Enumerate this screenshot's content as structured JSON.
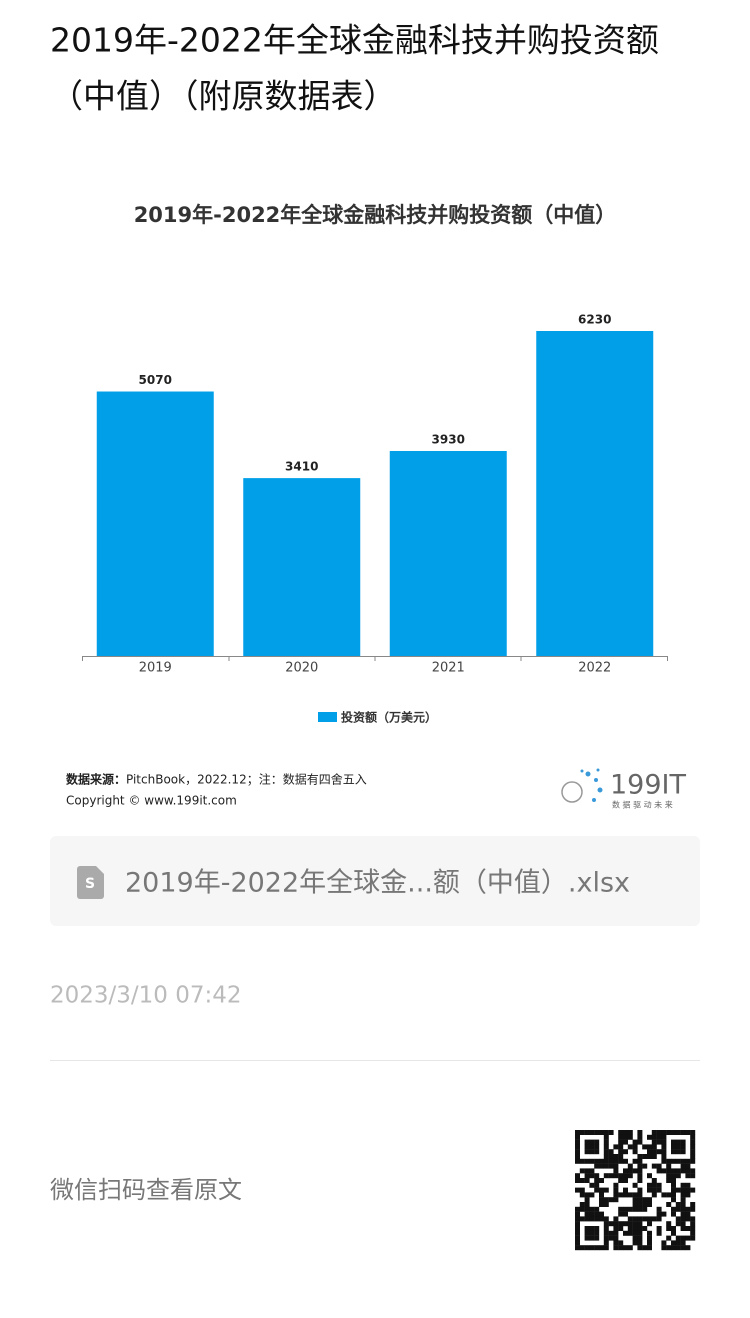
{
  "page": {
    "title_line1": "2019年-2022年全球金融科技并购投资额",
    "title_line2": "（中值）（附原数据表）"
  },
  "chart_data": {
    "type": "bar",
    "title": "2019年-2022年全球金融科技并购投资额（中值）",
    "categories": [
      "2019",
      "2020",
      "2021",
      "2022"
    ],
    "series": [
      {
        "name": "投资额（万美元）",
        "color": "#009fe8",
        "values": [
          5070,
          3410,
          3930,
          6230
        ]
      }
    ]
  },
  "chart_footer": {
    "source_label": "数据来源：",
    "source": "PitchBook，2022.12；注：数据有四舍五入",
    "copyright": "Copyright © www.199it.com",
    "logo": "199IT",
    "logo_tagline": "数 据 驱 动 未 来"
  },
  "attachment": {
    "file_name": "2019年-2022年全球金...额（中值）.xlsx"
  },
  "date": "2023/3/10 07:42",
  "qr_prompt": "微信扫码查看原文"
}
